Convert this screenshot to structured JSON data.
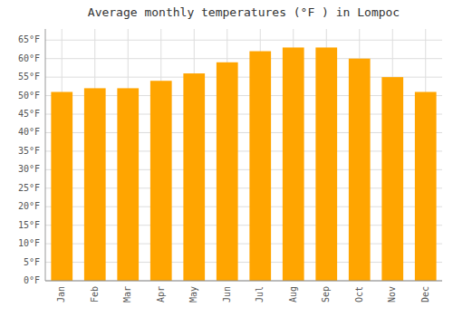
{
  "chart_data": {
    "type": "bar",
    "title": "Average monthly temperatures (°F ) in Lompoc",
    "categories": [
      "Jan",
      "Feb",
      "Mar",
      "Apr",
      "May",
      "Jun",
      "Jul",
      "Aug",
      "Sep",
      "Oct",
      "Nov",
      "Dec"
    ],
    "values": [
      51,
      52,
      52,
      54,
      56,
      59,
      62,
      63,
      63,
      60,
      55,
      51
    ],
    "color": "#FFA500",
    "ylim": [
      0,
      68
    ],
    "yticks": [
      {
        "value": 0,
        "label": "0°F"
      },
      {
        "value": 5,
        "label": "5°F"
      },
      {
        "value": 10,
        "label": "10°F"
      },
      {
        "value": 15,
        "label": "15°F"
      },
      {
        "value": 20,
        "label": "20°F"
      },
      {
        "value": 25,
        "label": "25°F"
      },
      {
        "value": 30,
        "label": "30°F"
      },
      {
        "value": 35,
        "label": "35°F"
      },
      {
        "value": 40,
        "label": "40°F"
      },
      {
        "value": 45,
        "label": "45°F"
      },
      {
        "value": 50,
        "label": "50°F"
      },
      {
        "value": 55,
        "label": "55°F"
      },
      {
        "value": 60,
        "label": "60°F"
      },
      {
        "value": 65,
        "label": "65°F"
      }
    ],
    "grid": true
  }
}
